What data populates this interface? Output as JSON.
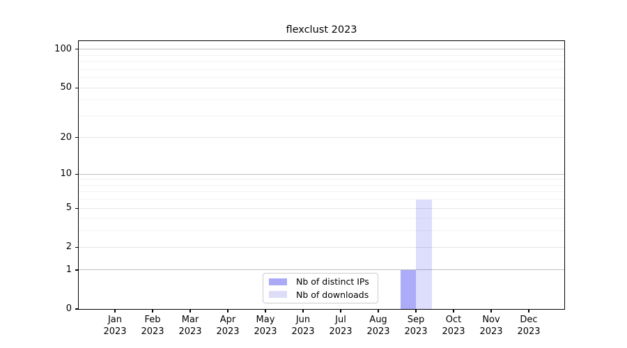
{
  "chart_data": {
    "type": "bar",
    "title": "flexclust 2023",
    "categories": [
      "Jan",
      "Feb",
      "Mar",
      "Apr",
      "May",
      "Jun",
      "Jul",
      "Aug",
      "Sep",
      "Oct",
      "Nov",
      "Dec"
    ],
    "year_label": "2023",
    "series": [
      {
        "name": "Nb of distinct IPs",
        "swatch_hex": "#aaaaf7",
        "fill": "rgba(13,13,235,0.345)",
        "values": [
          0,
          0,
          0,
          0,
          0,
          0,
          0,
          0,
          1,
          0,
          0,
          0
        ]
      },
      {
        "name": "Nb of downloads",
        "swatch_hex": "#ddddf8",
        "fill": "rgba(13,13,235,0.14)",
        "values": [
          0,
          0,
          0,
          0,
          0,
          0,
          0,
          0,
          6,
          0,
          0,
          0
        ]
      }
    ],
    "xlabel": "",
    "ylabel": "",
    "yscale": "log1p",
    "ylim": [
      0,
      116
    ],
    "yticks": [
      0,
      1,
      2,
      5,
      10,
      20,
      50,
      100
    ],
    "gridlines": {
      "decade": [
        1,
        10,
        100
      ],
      "labeled": [
        2,
        5,
        20,
        50
      ],
      "minor": [
        3,
        4,
        6,
        7,
        8,
        9,
        30,
        40,
        60,
        70,
        80,
        90
      ]
    },
    "grid_colors": {
      "decade": "#c0c0c0",
      "labeled": "#e4e4e4",
      "minor": "#f1f1f1"
    },
    "grid": true,
    "legend_position": "lower center"
  }
}
